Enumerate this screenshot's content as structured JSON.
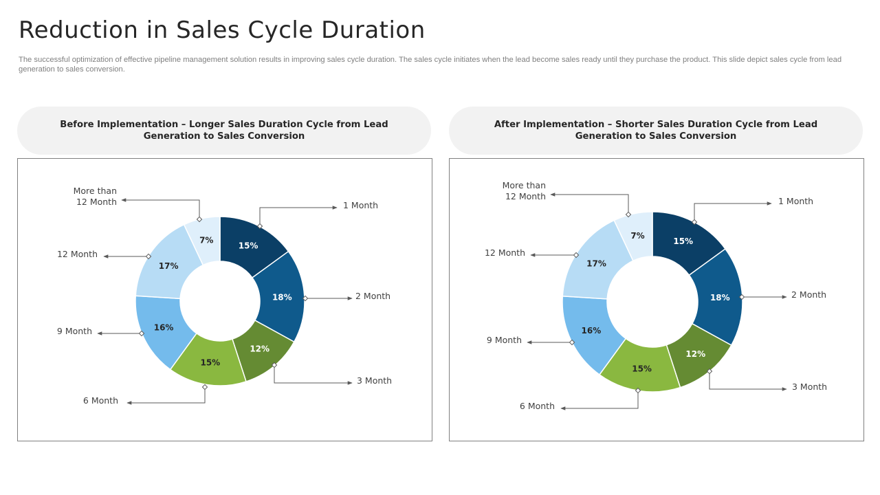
{
  "page": {
    "title": "Reduction in Sales Cycle Duration",
    "subtitle": "The successful optimization of effective pipeline management solution results in improving sales cycle duration. The sales cycle initiates when the lead become sales ready until they purchase the product. This slide depict sales cycle from lead generation to sales conversion."
  },
  "chart_data": [
    {
      "type": "pie",
      "variant": "donut",
      "title": "Before Implementation – Longer Sales Duration Cycle from Lead Generation to Sales Conversion",
      "categories": [
        "1 Month",
        "2 Month",
        "3 Month",
        "6 Month",
        "9 Month",
        "12 Month",
        "More than 12 Month"
      ],
      "category_lines": [
        [
          "1 Month"
        ],
        [
          "2 Month"
        ],
        [
          "3 Month"
        ],
        [
          "6 Month"
        ],
        [
          "9 Month"
        ],
        [
          "12 Month"
        ],
        [
          "More than",
          "12 Month"
        ]
      ],
      "values": [
        15,
        18,
        12,
        15,
        16,
        17,
        7
      ],
      "value_labels": [
        "15%",
        "18%",
        "12%",
        "15%",
        "16%",
        "17%",
        "7%"
      ],
      "colors": [
        "#0b3f66",
        "#0f5a8c",
        "#658b33",
        "#8ab840",
        "#74bbec",
        "#b7dcf5",
        "#dfeffb"
      ],
      "label_colors": [
        "#ffffff",
        "#ffffff",
        "#ffffff",
        "#262626",
        "#262626",
        "#262626",
        "#262626"
      ]
    },
    {
      "type": "pie",
      "variant": "donut",
      "title": "After Implementation – Shorter Sales Duration Cycle from Lead Generation to Sales Conversion",
      "categories": [
        "1 Month",
        "2 Month",
        "3 Month",
        "6 Month",
        "9 Month",
        "12 Month",
        "More than 12 Month"
      ],
      "category_lines": [
        [
          "1 Month"
        ],
        [
          "2 Month"
        ],
        [
          "3 Month"
        ],
        [
          "6 Month"
        ],
        [
          "9 Month"
        ],
        [
          "12 Month"
        ],
        [
          "More than",
          "12 Month"
        ]
      ],
      "values": [
        15,
        18,
        12,
        15,
        16,
        17,
        7
      ],
      "value_labels": [
        "15%",
        "18%",
        "12%",
        "15%",
        "16%",
        "17%",
        "7%"
      ],
      "colors": [
        "#0b3f66",
        "#0f5a8c",
        "#658b33",
        "#8ab840",
        "#74bbec",
        "#b7dcf5",
        "#dfeffb"
      ],
      "label_colors": [
        "#ffffff",
        "#ffffff",
        "#ffffff",
        "#262626",
        "#262626",
        "#262626",
        "#262626"
      ]
    }
  ]
}
